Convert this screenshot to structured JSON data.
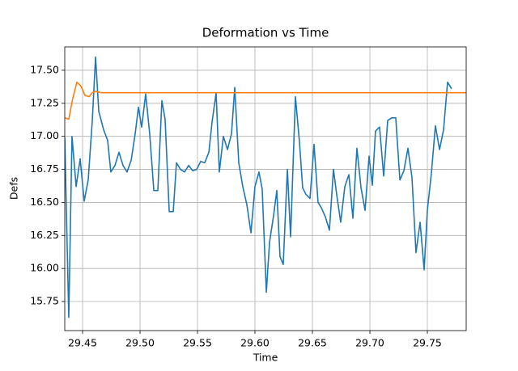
{
  "chart_data": {
    "type": "line",
    "title": "Deformation vs Time",
    "x_label": "Time",
    "y_label": "Defs",
    "xlim": [
      29.4345,
      29.7838
    ],
    "ylim": [
      15.53,
      17.677
    ],
    "xticks": [
      29.45,
      {
        "value": 29.5,
        "label": "29.50"
      },
      29.55,
      {
        "value": 29.6,
        "label": "29.60"
      },
      29.65,
      {
        "value": 29.7,
        "label": "29.70"
      },
      29.75
    ],
    "yticks": [
      15.75,
      {
        "value": 16,
        "label": "16.00"
      },
      16.25,
      {
        "value": 16.5,
        "label": "16.50"
      },
      16.75,
      {
        "value": 17,
        "label": "17.00"
      },
      17.25,
      {
        "value": 17.5,
        "label": "17.50"
      }
    ],
    "grid": true,
    "series": [
      {
        "color": "#1f77b4",
        "x": [
          29.4345,
          29.438,
          29.4408,
          29.4444,
          29.4479,
          29.4514,
          29.4549,
          29.4584,
          29.4613,
          29.4641,
          29.4683,
          29.4718,
          29.4746,
          29.4782,
          29.4817,
          29.4852,
          29.4887,
          29.4923,
          29.4958,
          29.4986,
          29.5014,
          29.5049,
          29.5084,
          29.512,
          29.5155,
          29.519,
          29.5218,
          29.5254,
          29.5289,
          29.5317,
          29.5352,
          29.5387,
          29.5423,
          29.5458,
          29.5493,
          29.5528,
          29.5563,
          29.5599,
          29.5627,
          29.5662,
          29.569,
          29.5725,
          29.5761,
          29.5796,
          29.5824,
          29.5859,
          29.5894,
          29.593,
          29.5965,
          29.6,
          29.6035,
          29.6063,
          29.6099,
          29.6127,
          29.6162,
          29.619,
          29.6218,
          29.6246,
          29.6282,
          29.631,
          29.6352,
          29.6387,
          29.6415,
          29.6444,
          29.6479,
          29.6514,
          29.6549,
          29.6577,
          29.6613,
          29.6648,
          29.6683,
          29.6711,
          29.6746,
          29.6782,
          29.6817,
          29.6852,
          29.6887,
          29.6923,
          29.6958,
          29.6993,
          29.7021,
          29.7049,
          29.7084,
          29.712,
          29.7155,
          29.719,
          29.7225,
          29.7261,
          29.7296,
          29.7331,
          29.7366,
          29.7401,
          29.7437,
          29.7472,
          29.75,
          29.7535,
          29.757,
          29.7606,
          29.7641,
          29.7676,
          29.7711
        ],
        "values": [
          16.99,
          15.63,
          17.0,
          16.62,
          16.83,
          16.51,
          16.67,
          17.11,
          17.6,
          17.19,
          17.05,
          16.97,
          16.73,
          16.78,
          16.88,
          16.78,
          16.73,
          16.82,
          17.02,
          17.22,
          17.07,
          17.32,
          17.02,
          16.59,
          16.59,
          17.27,
          17.13,
          16.43,
          16.43,
          16.8,
          16.75,
          16.73,
          16.78,
          16.74,
          16.75,
          16.81,
          16.8,
          16.88,
          17.11,
          17.33,
          16.73,
          17.0,
          16.9,
          17.02,
          17.37,
          16.8,
          16.62,
          16.48,
          16.27,
          16.62,
          16.73,
          16.6,
          15.82,
          16.2,
          16.4,
          16.59,
          16.09,
          16.03,
          16.75,
          16.24,
          17.3,
          16.96,
          16.61,
          16.56,
          16.53,
          16.94,
          16.5,
          16.46,
          16.39,
          16.29,
          16.75,
          16.56,
          16.35,
          16.62,
          16.71,
          16.38,
          16.91,
          16.61,
          16.44,
          16.85,
          16.63,
          17.04,
          17.07,
          16.7,
          17.12,
          17.14,
          17.14,
          16.67,
          16.74,
          16.91,
          16.69,
          16.12,
          16.35,
          15.99,
          16.44,
          16.72,
          17.08,
          16.9,
          17.05,
          17.41,
          17.36
        ]
      },
      {
        "color": "#ff7f0e",
        "x": [
          29.4345,
          29.438,
          29.4415,
          29.4451,
          29.4486,
          29.4521,
          29.4556,
          29.4584,
          29.4613,
          29.4662,
          29.4732,
          29.7838
        ],
        "values": [
          17.14,
          17.13,
          17.29,
          17.41,
          17.38,
          17.31,
          17.3,
          17.33,
          17.34,
          17.33,
          17.33,
          17.33
        ]
      }
    ]
  }
}
